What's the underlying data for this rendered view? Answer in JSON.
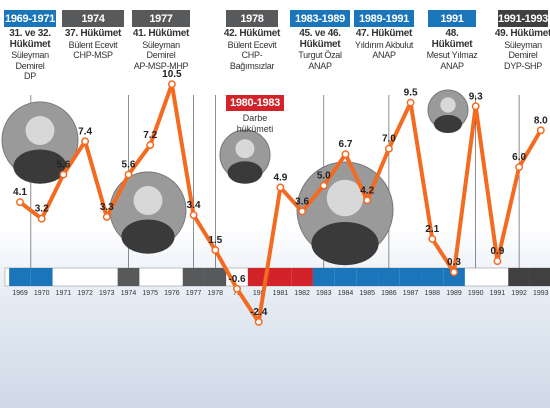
{
  "colors": {
    "line": "#f36b21",
    "point": "#ffffff",
    "blue": "#1b75bb",
    "gray": "#58595b",
    "red": "#d3232a",
    "darkgray": "#404041"
  },
  "periods": [
    {
      "label": "1969-1971",
      "color": "blue",
      "lines": [
        "31. ve 32.",
        "Hükümet",
        "Süleyman",
        "Demirel",
        "DP"
      ]
    },
    {
      "label": "1974",
      "color": "gray",
      "lines": [
        "37. Hükümet",
        "Bülent Ecevit",
        "CHP-MSP"
      ]
    },
    {
      "label": "1977",
      "color": "gray",
      "lines": [
        "41. Hükümet",
        "Süleyman Demirel",
        "AP-MSP-MHP"
      ]
    },
    {
      "label": "1978",
      "color": "gray",
      "lines": [
        "42. Hükümet",
        "Bülent Ecevit",
        "CHP-",
        "Bağımsızlar"
      ]
    },
    {
      "label": "1983-1989",
      "color": "blue",
      "lines": [
        "45. ve 46.",
        "Hükümet",
        "Turgut Özal",
        "ANAP"
      ]
    },
    {
      "label": "1989-1991",
      "color": "blue",
      "lines": [
        "47. Hükümet",
        "Yıldırım Akbulut",
        "ANAP"
      ]
    },
    {
      "label": "1991",
      "color": "blue",
      "lines": [
        "48. Hükümet",
        "Mesut Yılmaz",
        "ANAP"
      ]
    },
    {
      "label": "1991-1993",
      "color": "darkgray",
      "lines": [
        "49. Hükümet",
        "Süleyman",
        "Demirel",
        "DYP-SHP"
      ]
    }
  ],
  "coup": {
    "label": "1980-1983",
    "lines": [
      "Darbe",
      "hükümeti"
    ]
  },
  "chart_data": {
    "type": "line",
    "x": [
      "1969",
      "1970",
      "1971",
      "1972",
      "1973",
      "1974",
      "1975",
      "1976",
      "1977",
      "1978",
      "1979",
      "1980",
      "1981",
      "1982",
      "1983",
      "1984",
      "1985",
      "1986",
      "1987",
      "1988",
      "1989",
      "1990",
      "1991",
      "1992",
      "1993"
    ],
    "tick_labels": [
      "1969",
      "1970",
      "1971",
      "1972",
      "1973",
      "1974",
      "1975",
      "1976",
      "1977",
      "1978",
      "79",
      "198",
      "1981",
      "1982",
      "1983",
      "1984",
      "1985",
      "1986",
      "1987",
      "1988",
      "1989",
      "1990",
      "1991",
      "1992",
      "1993"
    ],
    "series": [
      {
        "values": [
          4.1,
          3.2,
          5.6,
          7.4,
          3.3,
          5.6,
          7.2,
          10.5,
          3.4,
          1.5,
          -0.6,
          -2.4,
          4.9,
          3.6,
          5.0,
          6.7,
          4.2,
          7.0,
          9.5,
          2.1,
          0.3,
          9.3,
          0.9,
          6.0,
          8.0
        ]
      }
    ],
    "data_labels": [
      "4.1",
      "3.2",
      "5.6",
      "7.4",
      "3.3",
      "5.6",
      "7.2",
      "10.5",
      "3.4",
      "1.5",
      "-0.6",
      "-2.4",
      "4.9",
      "3.6",
      "5.0",
      "6.7",
      "4.2",
      "7.0",
      "9.5",
      "2.1",
      "0.3",
      "9.3",
      "0.9",
      "6.0",
      "8.0"
    ],
    "band_segments": [
      "blue",
      "blue",
      "none",
      "none",
      "none",
      "gray",
      "none",
      "none",
      "gray",
      "gray",
      "none",
      "red",
      "red",
      "red",
      "blue",
      "blue",
      "blue",
      "blue",
      "blue",
      "blue",
      "blue",
      "none",
      "none",
      "darkgray",
      "darkgray"
    ],
    "ylim": [
      -3,
      11
    ],
    "grid": false
  }
}
